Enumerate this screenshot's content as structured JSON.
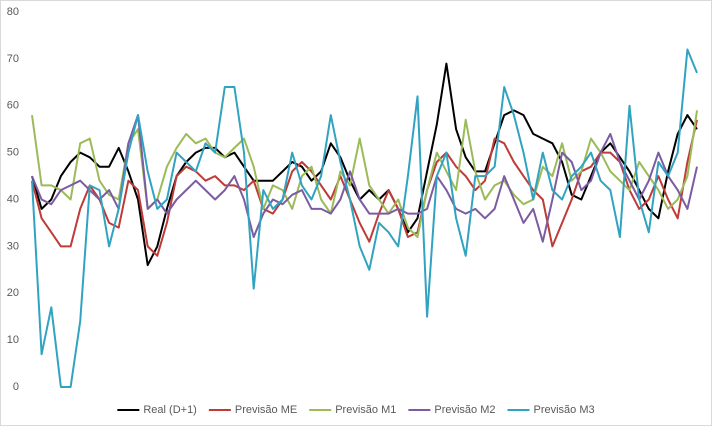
{
  "chart_data": {
    "type": "line",
    "ylim": [
      0,
      80
    ],
    "yticks": [
      0,
      10,
      20,
      30,
      40,
      50,
      60,
      70,
      80
    ],
    "grid": false,
    "legend": "bottom",
    "series": [
      {
        "name": "Real (D+1)",
        "color": "#000000",
        "values": [
          45,
          38,
          40,
          45,
          48,
          50,
          49,
          47,
          47,
          51,
          46,
          40,
          26,
          30,
          38,
          45,
          48,
          50,
          51,
          51,
          49,
          50,
          47,
          44,
          44,
          44,
          46,
          48,
          47,
          44,
          46,
          52,
          49,
          44,
          40,
          42,
          40,
          42,
          38,
          33,
          36,
          46,
          56,
          69,
          55,
          49,
          46,
          46,
          52,
          58,
          59,
          58,
          54,
          53,
          52,
          48,
          41,
          40,
          45,
          50,
          52,
          49,
          46,
          42,
          38,
          36,
          46,
          54,
          58,
          55
        ]
      },
      {
        "name": "Previsão ME",
        "color": "#be3b37",
        "values": [
          44,
          36,
          33,
          30,
          30,
          38,
          43,
          40,
          35,
          34,
          44,
          42,
          30,
          28,
          35,
          45,
          47,
          46,
          44,
          45,
          43,
          43,
          42,
          44,
          38,
          37,
          40,
          46,
          48,
          46,
          43,
          40,
          45,
          40,
          35,
          31,
          37,
          42,
          38,
          32,
          33,
          42,
          48,
          50,
          47,
          45,
          42,
          44,
          53,
          52,
          48,
          45,
          42,
          40,
          30,
          35,
          40,
          46,
          47,
          50,
          50,
          48,
          42,
          38,
          40,
          45,
          40,
          36,
          48,
          57
        ]
      },
      {
        "name": "Previsão M1",
        "color": "#9bbb59",
        "values": [
          58,
          43,
          43,
          42,
          40,
          52,
          53,
          44,
          41,
          40,
          52,
          55,
          38,
          40,
          47,
          51,
          54,
          52,
          53,
          50,
          49,
          51,
          53,
          47,
          38,
          43,
          42,
          38,
          45,
          47,
          40,
          37,
          46,
          43,
          53,
          43,
          40,
          37,
          40,
          34,
          32,
          42,
          50,
          46,
          42,
          57,
          46,
          40,
          43,
          44,
          41,
          39,
          40,
          47,
          45,
          52,
          44,
          46,
          53,
          50,
          46,
          44,
          42,
          48,
          45,
          42,
          38,
          40,
          45,
          59
        ]
      },
      {
        "name": "Previsão M2",
        "color": "#7b5ba1",
        "values": [
          45,
          40,
          39,
          42,
          43,
          44,
          42,
          40,
          42,
          38,
          52,
          58,
          38,
          40,
          37,
          40,
          42,
          44,
          42,
          40,
          42,
          45,
          40,
          32,
          37,
          40,
          39,
          41,
          42,
          38,
          38,
          37,
          40,
          46,
          40,
          37,
          37,
          37,
          38,
          37,
          37,
          38,
          45,
          42,
          38,
          37,
          38,
          36,
          38,
          45,
          40,
          35,
          38,
          31,
          40,
          50,
          48,
          42,
          44,
          50,
          54,
          48,
          44,
          40,
          44,
          50,
          45,
          42,
          38,
          47
        ]
      },
      {
        "name": "Previsão M3",
        "color": "#31a3c1",
        "values": [
          44,
          7,
          17,
          0,
          0,
          14,
          43,
          42,
          30,
          38,
          50,
          58,
          46,
          38,
          40,
          50,
          48,
          46,
          52,
          50,
          64,
          64,
          50,
          21,
          42,
          38,
          40,
          50,
          43,
          40,
          45,
          58,
          48,
          40,
          30,
          25,
          35,
          33,
          30,
          45,
          62,
          15,
          45,
          50,
          36,
          28,
          45,
          45,
          47,
          64,
          58,
          50,
          40,
          50,
          42,
          40,
          45,
          47,
          50,
          44,
          42,
          32,
          60,
          40,
          33,
          48,
          45,
          50,
          72,
          67
        ]
      }
    ]
  }
}
